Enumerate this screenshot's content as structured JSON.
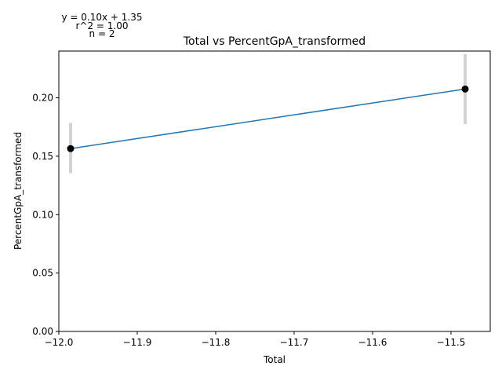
{
  "chart_data": {
    "type": "line",
    "title": "Total vs PercentGpA_transformed",
    "xlabel": "Total",
    "ylabel": "PercentGpA_transformed",
    "xlim": [
      -12.0,
      -11.45
    ],
    "ylim": [
      0.0,
      0.24
    ],
    "xticks": [
      -12.0,
      -11.9,
      -11.8,
      -11.7,
      -11.6,
      -11.5
    ],
    "xtick_labels": [
      "−12.0",
      "−11.9",
      "−11.8",
      "−11.7",
      "−11.6",
      "−11.5"
    ],
    "yticks": [
      0.0,
      0.05,
      0.1,
      0.15,
      0.2
    ],
    "ytick_labels": [
      "0.00",
      "0.05",
      "0.10",
      "0.15",
      "0.20"
    ],
    "grid": false,
    "series": [
      {
        "x": [
          -11.985,
          -11.482
        ],
        "y": [
          0.1565,
          0.2075
        ],
        "yerr_low": [
          0.1355,
          0.1775
        ],
        "yerr_high": [
          0.1785,
          0.2375
        ],
        "line_color": "#1f77b4",
        "marker_color": "#000000",
        "errorbar_color": "#d3d3d3"
      }
    ],
    "annotations": [
      "y = 0.10x + 1.35",
      "r^2 = 1.00",
      "n = 2"
    ]
  }
}
